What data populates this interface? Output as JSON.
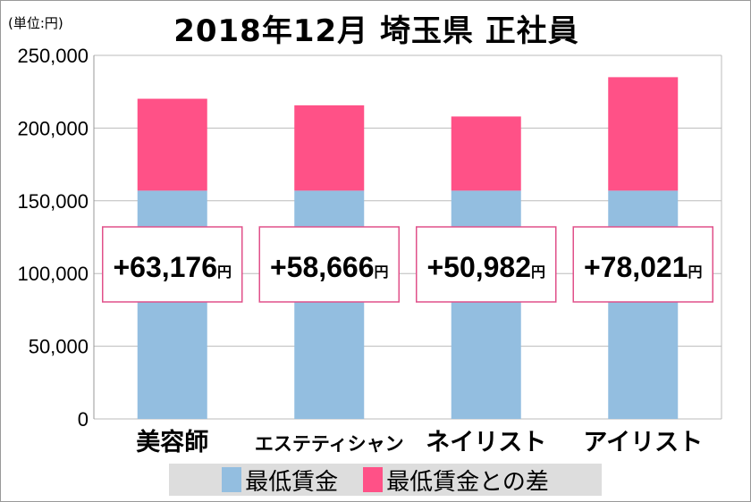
{
  "chart_data": {
    "type": "bar",
    "stacked": true,
    "title": "2018年12月 埼玉県 正社員",
    "unit_label": "(単位:円)",
    "categories": [
      "美容師",
      "エステティシャン",
      "ネイリスト",
      "アイリスト"
    ],
    "series": [
      {
        "name": "最低賃金",
        "values": [
          157000,
          157000,
          157000,
          157000
        ],
        "color": "#93bee0"
      },
      {
        "name": "最低賃金との差",
        "values": [
          63176,
          58666,
          50982,
          78021
        ],
        "color": "#ff5187"
      }
    ],
    "data_labels": [
      "+63,176",
      "+58,666",
      "+50,982",
      "+78,021"
    ],
    "data_label_unit": "円",
    "ylim": [
      0,
      250000
    ],
    "yticks": [
      "0",
      "50,000",
      "100,000",
      "150,000",
      "200,000",
      "250,000"
    ],
    "grid": true,
    "legend": "bottom"
  }
}
